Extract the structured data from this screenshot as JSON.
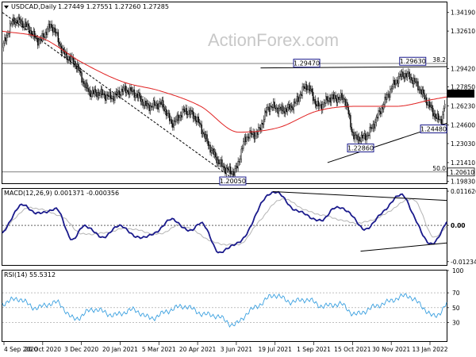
{
  "watermark": "ActionForex.com",
  "chart_data": [
    {
      "type": "candlestick",
      "title": "USDCAD,Daily",
      "ohlc_header": "1.27449 1.27551 1.27260 1.27285",
      "ylim": [
        1.1965,
        1.3505
      ],
      "y_ticks": [
        1.3419,
        1.3261,
        1.2942,
        1.2785,
        1.2623,
        1.246,
        1.2303,
        1.2141,
        1.1983
      ],
      "y_tick_labels": [
        "1.34190",
        "1.32610",
        "1.29420",
        "1.27850",
        "1.26230",
        "1.24600",
        "1.23030",
        "1.21410",
        "1.19830"
      ],
      "last_price": 1.27285,
      "last_price_label": "1.27285",
      "fib_levels": [
        {
          "label": "38.2",
          "value": 1.2985
        },
        {
          "label": "50.0",
          "value": 1.2061,
          "value_label": "1.20610"
        }
      ],
      "price_labels": [
        {
          "text": "1.20050",
          "date": "2021-05-27",
          "value": 1.2005
        },
        {
          "text": "1.22860",
          "date": "2021-10-21",
          "value": 1.2286
        },
        {
          "text": "1.24480",
          "date": "2022-01-13",
          "value": 1.2448
        },
        {
          "text": "1.29470",
          "date": "2021-08-20",
          "value": 1.2947
        },
        {
          "text": "1.29630",
          "date": "2021-12-20",
          "value": 1.2963
        }
      ],
      "close_series": {
        "dates": [
          "2020-09-04",
          "2020-09-18",
          "2020-10-02",
          "2020-10-16",
          "2020-10-30",
          "2020-11-13",
          "2020-11-27",
          "2020-12-11",
          "2020-12-25",
          "2021-01-08",
          "2021-01-22",
          "2021-02-05",
          "2021-02-19",
          "2021-03-05",
          "2021-03-19",
          "2021-04-02",
          "2021-04-16",
          "2021-04-30",
          "2021-05-14",
          "2021-05-28",
          "2021-06-11",
          "2021-06-25",
          "2021-07-09",
          "2021-07-23",
          "2021-08-06",
          "2021-08-20",
          "2021-09-03",
          "2021-09-17",
          "2021-10-01",
          "2021-10-15",
          "2021-10-29",
          "2021-11-12",
          "2021-11-26",
          "2021-12-10",
          "2021-12-24",
          "2022-01-07",
          "2022-01-21",
          "2022-01-28"
        ],
        "values": [
          1.312,
          1.335,
          1.33,
          1.318,
          1.33,
          1.308,
          1.298,
          1.276,
          1.273,
          1.27,
          1.276,
          1.272,
          1.262,
          1.264,
          1.248,
          1.258,
          1.25,
          1.228,
          1.212,
          1.206,
          1.235,
          1.24,
          1.262,
          1.259,
          1.264,
          1.279,
          1.262,
          1.269,
          1.269,
          1.235,
          1.238,
          1.257,
          1.278,
          1.289,
          1.281,
          1.264,
          1.25,
          1.273
        ]
      },
      "ma_series": {
        "name": "",
        "dates": [
          "2020-09-04",
          "2020-10-20",
          "2020-12-03",
          "2021-01-20",
          "2021-03-05",
          "2021-04-20",
          "2021-06-03",
          "2021-07-19",
          "2021-09-01",
          "2021-10-15",
          "2021-11-30",
          "2022-01-13",
          "2022-01-28"
        ],
        "values": [
          1.326,
          1.32,
          1.3,
          1.283,
          1.275,
          1.262,
          1.24,
          1.244,
          1.258,
          1.262,
          1.262,
          1.268,
          1.27
        ]
      },
      "trendlines": [
        {
          "from": {
            "date": "2020-09-04",
            "value": 1.3419
          },
          "to": {
            "date": "2021-05-27",
            "value": 1.2005
          }
        },
        {
          "from": {
            "date": "2021-06-28",
            "value": 1.2947
          },
          "to": {
            "date": "2022-01-28",
            "value": 1.2958
          }
        },
        {
          "from": {
            "date": "2021-09-13",
            "value": 1.2141
          },
          "to": {
            "date": "2022-01-28",
            "value": 1.2476
          }
        }
      ],
      "x_ticks": [
        "4 Sep 2020",
        "20 Oct 2020",
        "3 Dec 2020",
        "20 Jan 2021",
        "5 Mar 2021",
        "20 Apr 2021",
        "3 Jun 2021",
        "19 Jul 2021",
        "1 Sep 2021",
        "15 Oct 2021",
        "30 Nov 2021",
        "13 Jan 2022"
      ]
    },
    {
      "type": "line",
      "title": "MACD(12,26,9) 0.001371 -0.000356",
      "ylim": [
        -0.01348,
        0.01244
      ],
      "y_ticks": [
        0.011626,
        0.0,
        -0.012348
      ],
      "y_tick_labels": [
        "0.011626",
        "0.00",
        "-0.012348"
      ],
      "series": [
        {
          "name": "",
          "dates": [
            "2020-09-04",
            "2020-09-28",
            "2020-10-14",
            "2020-11-05",
            "2020-11-24",
            "2020-12-07",
            "2020-12-28",
            "2021-01-18",
            "2021-02-05",
            "2021-02-25",
            "2021-03-18",
            "2021-04-08",
            "2021-04-20",
            "2021-05-12",
            "2021-05-28",
            "2021-06-10",
            "2021-06-29",
            "2021-07-15",
            "2021-08-03",
            "2021-08-17",
            "2021-09-06",
            "2021-09-21",
            "2021-10-08",
            "2021-10-25",
            "2021-11-17",
            "2021-12-08",
            "2021-12-22",
            "2022-01-11",
            "2022-01-28"
          ],
          "values": [
            -0.003,
            0.007,
            0.004,
            0.0055,
            -0.005,
            0.0,
            -0.004,
            0.0,
            -0.004,
            -0.003,
            0.002,
            -0.002,
            0.001,
            -0.0092,
            -0.0065,
            -0.004,
            0.0075,
            0.0115,
            0.006,
            0.004,
            0.0015,
            0.006,
            0.0045,
            -0.0013,
            0.005,
            0.0105,
            0.0025,
            -0.0065,
            0.0014
          ]
        },
        {
          "name": "",
          "dates": [
            "2020-09-04",
            "2020-10-06",
            "2020-10-24",
            "2020-11-16",
            "2020-12-05",
            "2021-01-02",
            "2021-01-24",
            "2021-03-03",
            "2021-03-26",
            "2021-05-08",
            "2021-06-02",
            "2021-06-28",
            "2021-07-23",
            "2021-08-20",
            "2021-09-14",
            "2021-10-18",
            "2021-11-13",
            "2021-12-20",
            "2022-01-14",
            "2022-01-28"
          ],
          "values": [
            -0.002,
            0.006,
            0.005,
            0.002,
            -0.003,
            -0.0025,
            -0.001,
            -0.003,
            0.0,
            -0.006,
            -0.0065,
            0.002,
            0.009,
            0.005,
            0.003,
            0.0008,
            0.003,
            0.009,
            -0.004,
            -0.0004
          ]
        }
      ],
      "trendlines": [
        {
          "from": {
            "date": "2021-07-12",
            "value": 0.0115
          },
          "to": {
            "date": "2022-01-28",
            "value": 0.0085
          }
        },
        {
          "from": {
            "date": "2021-10-21",
            "value": -0.0088
          },
          "to": {
            "date": "2022-01-28",
            "value": -0.006
          }
        }
      ]
    },
    {
      "type": "line",
      "title": "RSI(14) 55.5312",
      "ylim": [
        5,
        100
      ],
      "y_ticks": [
        100,
        70,
        50,
        30
      ],
      "y_tick_labels": [
        "100",
        "70",
        "50",
        "30"
      ],
      "series": [
        {
          "name": "",
          "dates": [
            "2020-09-04",
            "2020-09-22",
            "2020-10-12",
            "2020-11-05",
            "2020-11-26",
            "2020-12-18",
            "2021-01-11",
            "2021-02-01",
            "2021-02-22",
            "2021-03-12",
            "2021-04-01",
            "2021-04-21",
            "2021-05-11",
            "2021-05-28",
            "2021-06-14",
            "2021-06-28",
            "2021-07-14",
            "2021-08-02",
            "2021-08-20",
            "2021-09-08",
            "2021-09-27",
            "2021-10-15",
            "2021-11-03",
            "2021-11-22",
            "2021-12-13",
            "2022-01-03",
            "2022-01-14",
            "2022-01-28"
          ],
          "values": [
            55,
            62,
            50,
            57,
            35,
            48,
            40,
            47,
            36,
            45,
            52,
            42,
            38,
            27,
            44,
            55,
            67,
            58,
            61,
            52,
            55,
            41,
            50,
            58,
            66,
            48,
            38,
            55.5
          ]
        }
      ]
    }
  ]
}
